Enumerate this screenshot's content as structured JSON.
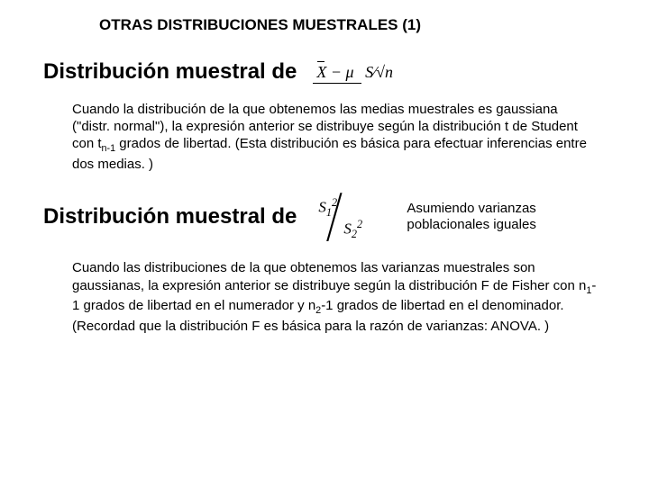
{
  "title": "OTRAS DISTRIBUCIONES MUESTRALES (1)",
  "section1": {
    "heading": "Distribución muestral de",
    "formula": {
      "num_a": "X",
      "num_op": " − ",
      "num_b": "μ",
      "den_a": "S",
      "den_slash": "⁄",
      "den_b": "√n"
    },
    "para_pre": "Cuando la distribución de la que obtenemos las medias muestrales es gaussiana (\"distr. normal\"), la expresión anterior se distribuye según la distribución t de Student con t",
    "para_sub": "n-1",
    "para_post": " grados de libertad. (Esta distribución es básica para efectuar inferencias entre dos medias. )"
  },
  "section2": {
    "heading": "Distribución muestral de",
    "formula": {
      "top_base": "S",
      "top_sub": "1",
      "top_sup": "2",
      "bot_base": "S",
      "bot_sub": "2",
      "bot_sup": "2"
    },
    "side_note": "Asumiendo varianzas poblacionales iguales",
    "para_parts": {
      "a": "Cuando las distribuciones de la que obtenemos las varianzas muestrales son gaussianas, la expresión anterior se distribuye según la distribución F de Fisher con n",
      "sub1": "1",
      "b": "-1 grados de libertad en el numerador y n",
      "sub2": "2",
      "c": "-1 grados de libertad en el denominador. (Recordad que la distribución F es básica para la razón de varianzas: ANOVA. )"
    }
  }
}
